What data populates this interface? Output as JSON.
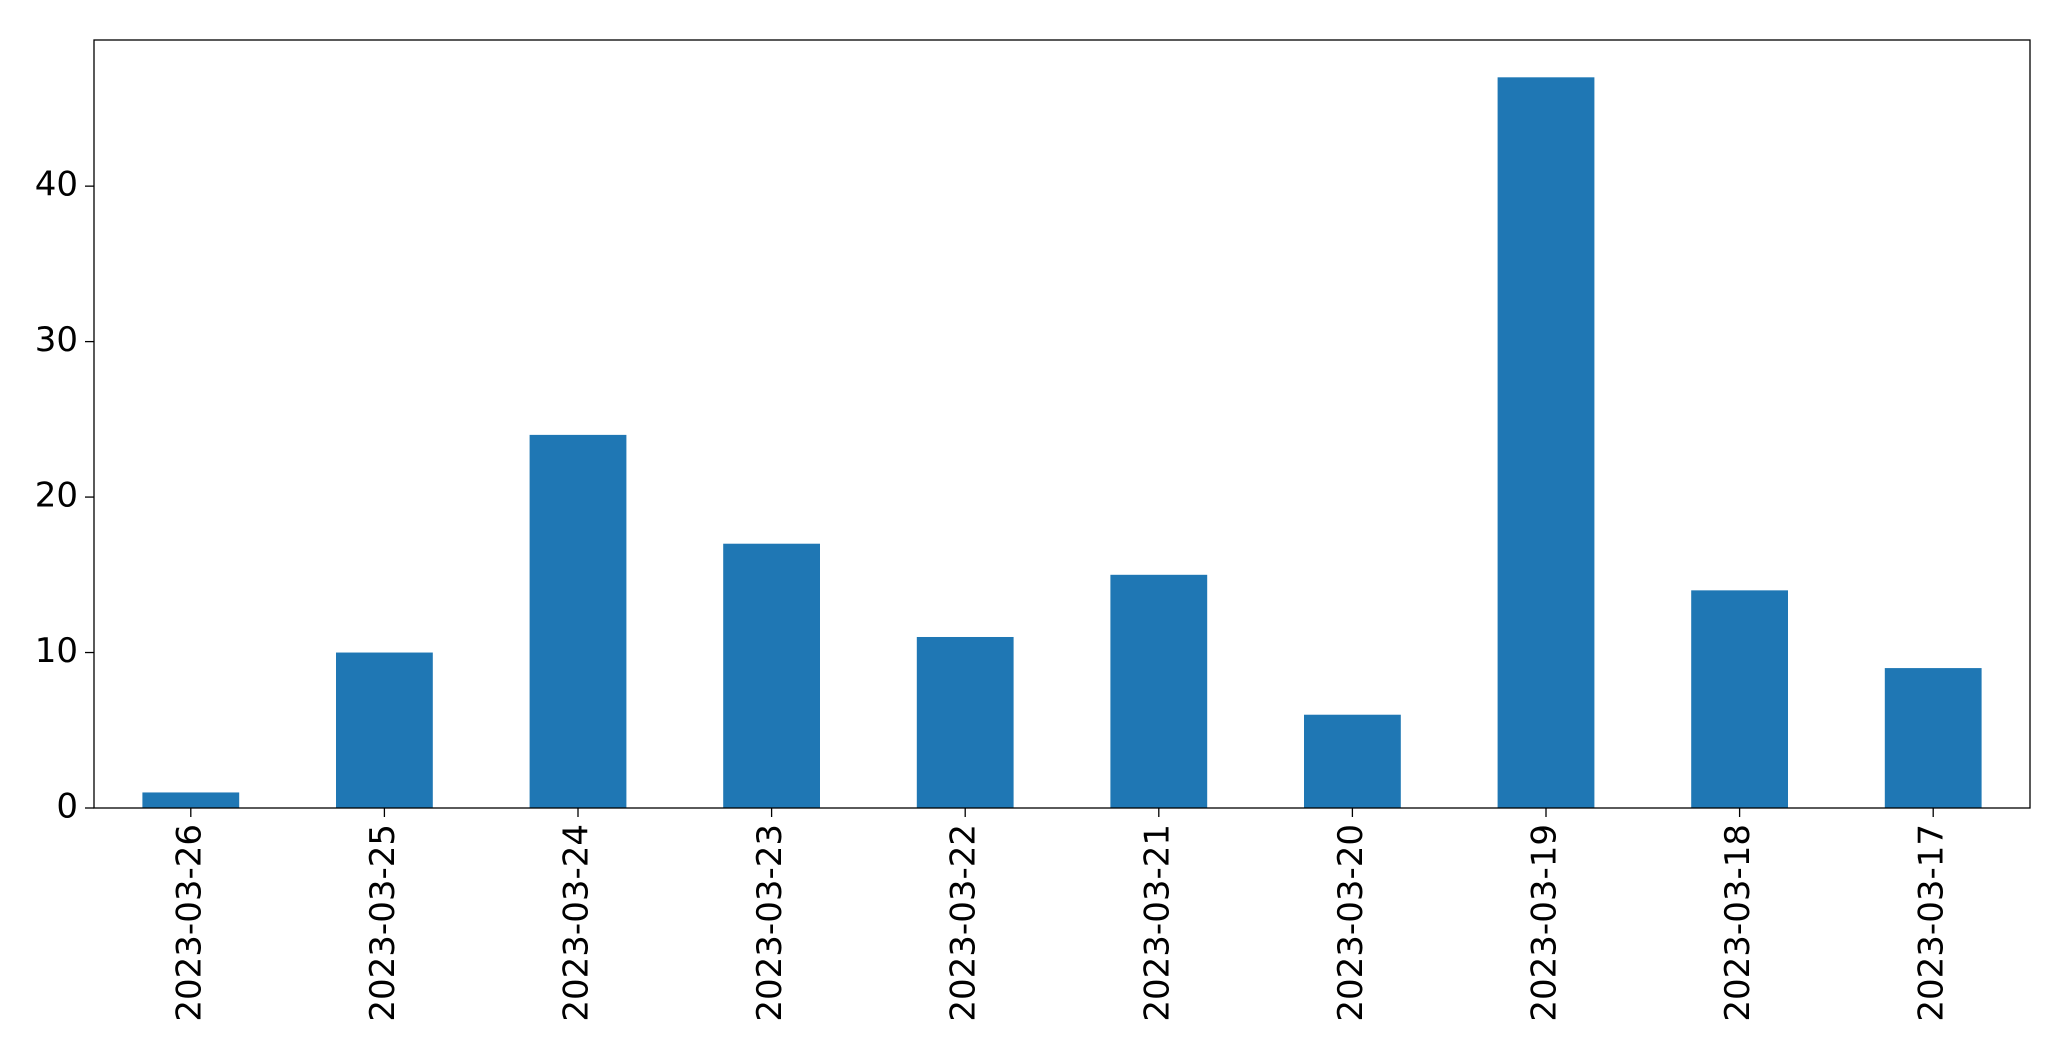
{
  "chart_data": {
    "type": "bar",
    "categories": [
      "2023-03-26",
      "2023-03-25",
      "2023-03-24",
      "2023-03-23",
      "2023-03-22",
      "2023-03-21",
      "2023-03-20",
      "2023-03-19",
      "2023-03-18",
      "2023-03-17"
    ],
    "values": [
      1,
      10,
      24,
      17,
      11,
      15,
      6,
      47,
      14,
      9
    ],
    "color": "#1f77b4",
    "ylim": [
      0,
      49.4
    ],
    "yticks": [
      0,
      10,
      20,
      30,
      40
    ],
    "grid": false
  }
}
